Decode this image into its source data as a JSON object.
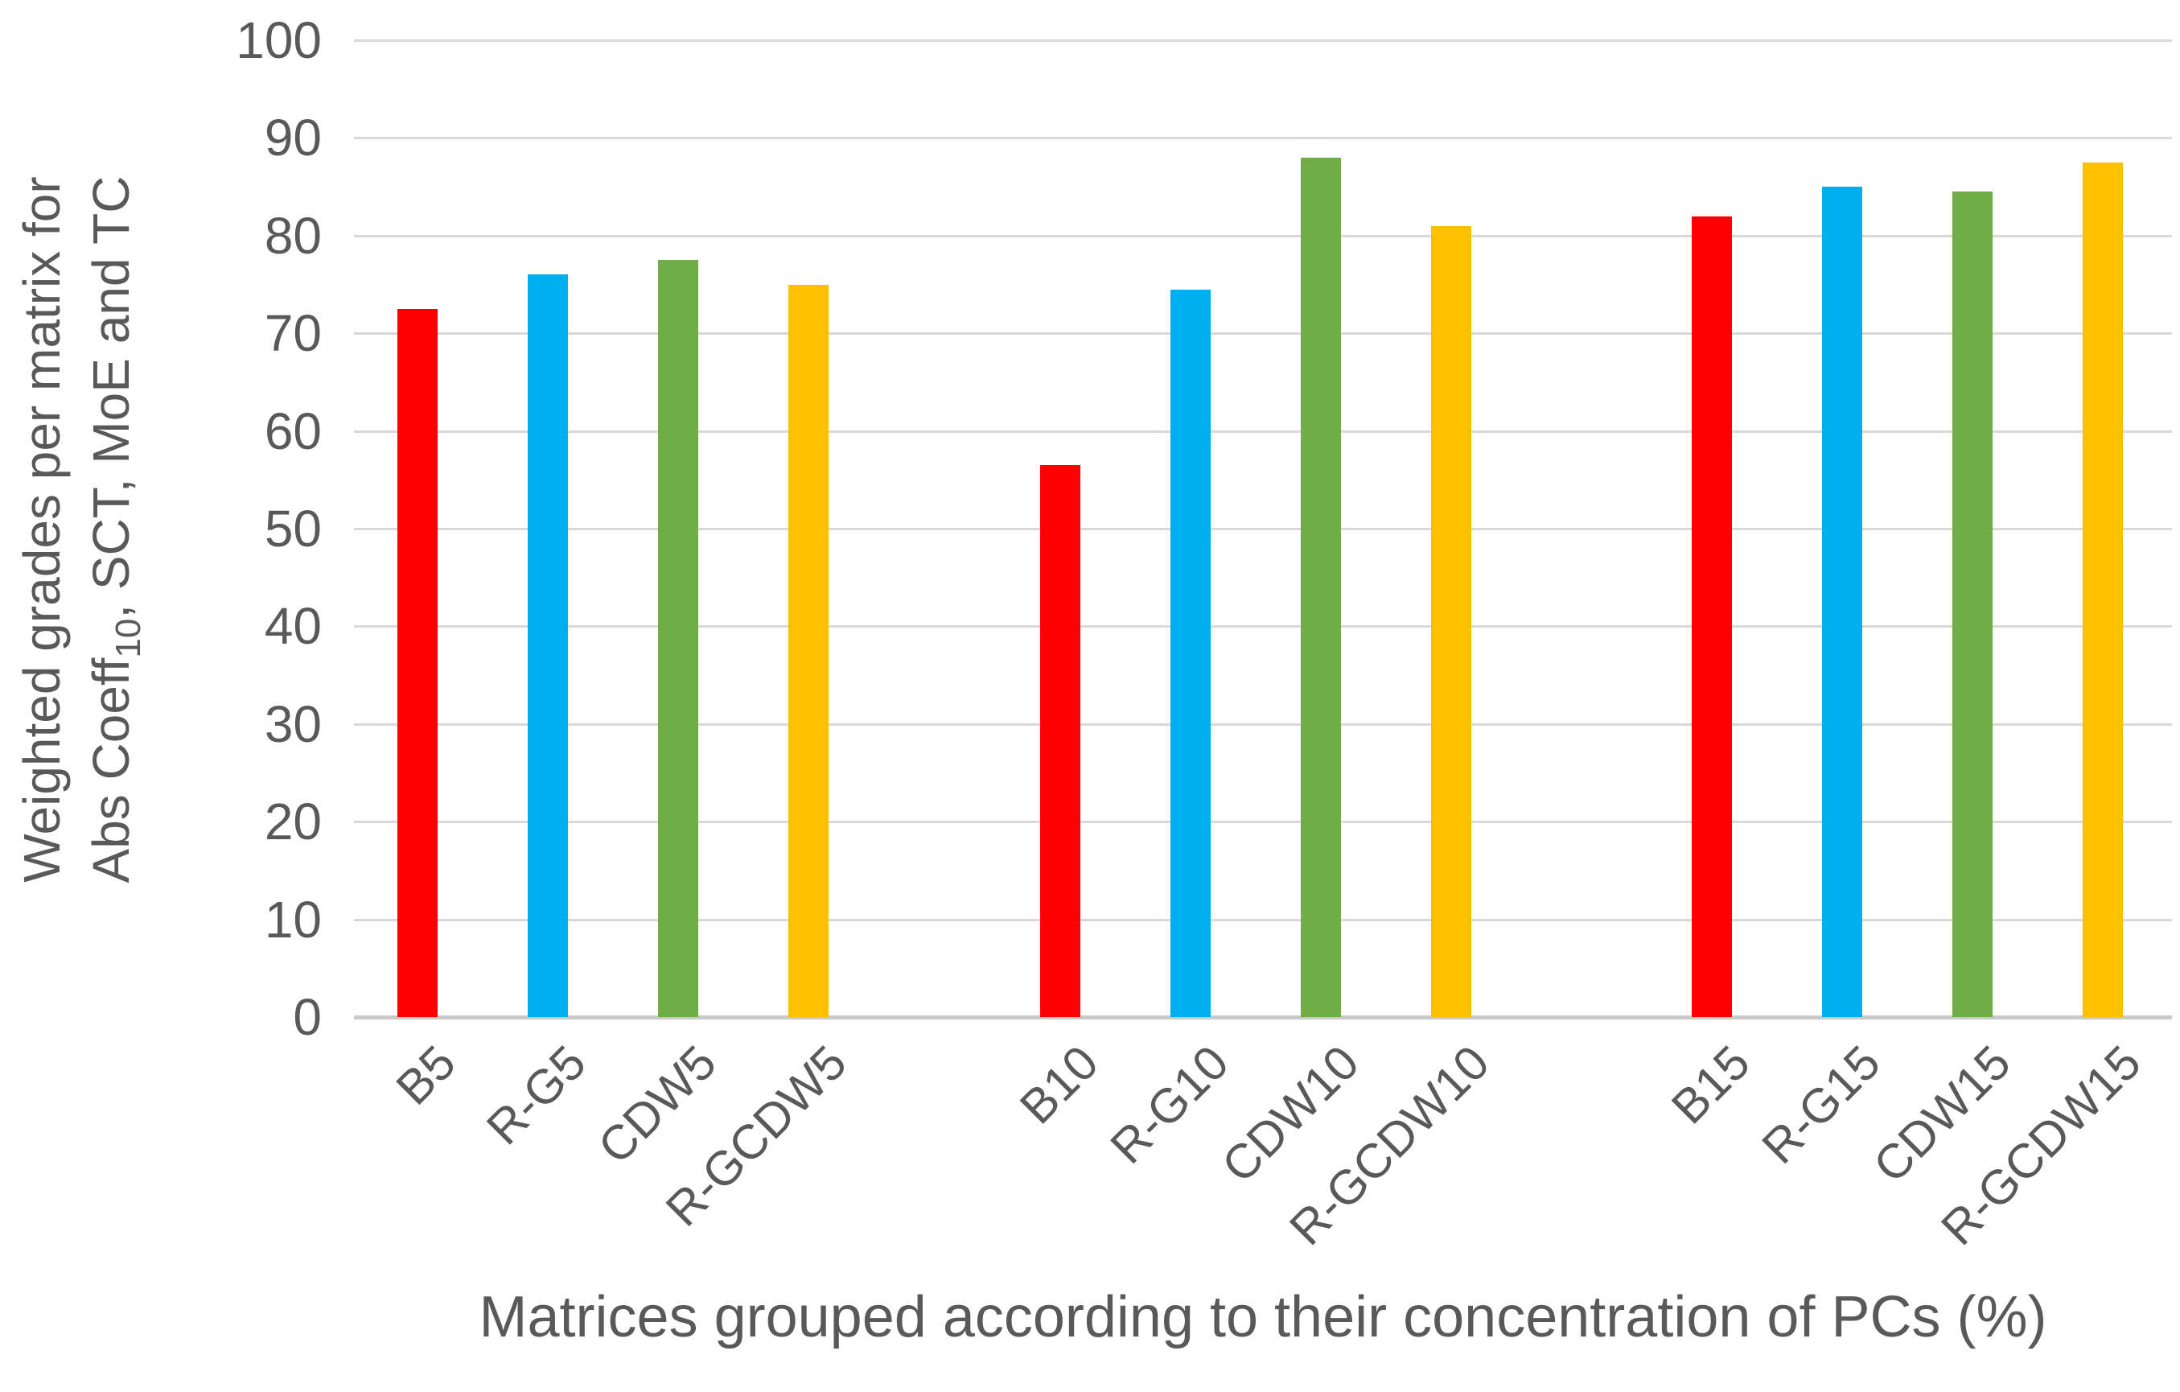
{
  "chart_data": {
    "type": "bar",
    "categories": [
      "B5",
      "R-G5",
      "CDW5",
      "R-GCDW5",
      "B10",
      "R-G10",
      "CDW10",
      "R-GCDW10",
      "B15",
      "R-G15",
      "CDW15",
      "R-GCDW15"
    ],
    "values": [
      72.5,
      76,
      77.5,
      75,
      56.5,
      74.5,
      88,
      81,
      82,
      85,
      84.5,
      87.5
    ],
    "groups": [
      {
        "label_suffix": "5",
        "categories": [
          "B5",
          "R-G5",
          "CDW5",
          "R-GCDW5"
        ],
        "values": [
          72.5,
          76,
          77.5,
          75
        ]
      },
      {
        "label_suffix": "10",
        "categories": [
          "B10",
          "R-G10",
          "CDW10",
          "R-GCDW10"
        ],
        "values": [
          56.5,
          74.5,
          88,
          81
        ]
      },
      {
        "label_suffix": "15",
        "categories": [
          "B15",
          "R-G15",
          "CDW15",
          "R-GCDW15"
        ],
        "values": [
          82,
          85,
          84.5,
          87.5
        ]
      }
    ],
    "bar_palette": [
      "#ff0000",
      "#00aeef",
      "#70ad47",
      "#ffc000"
    ],
    "title": "",
    "xlabel": "Matrices grouped according to their concentration of PCs (%)",
    "ylabel_line1": "Weighted grades per matrix for",
    "ylabel_line2_pre": "Abs Coeff",
    "ylabel_line2_sub": "10",
    "ylabel_line2_post": ", SCT, MoE and TC",
    "ylim": [
      0,
      100
    ],
    "ytick_step": 10,
    "yticks": [
      0,
      10,
      20,
      30,
      40,
      50,
      60,
      70,
      80,
      90,
      100
    ],
    "grid": true,
    "legend": "none",
    "text_color": "#595959",
    "gridline_color": "#d9d9d9"
  }
}
